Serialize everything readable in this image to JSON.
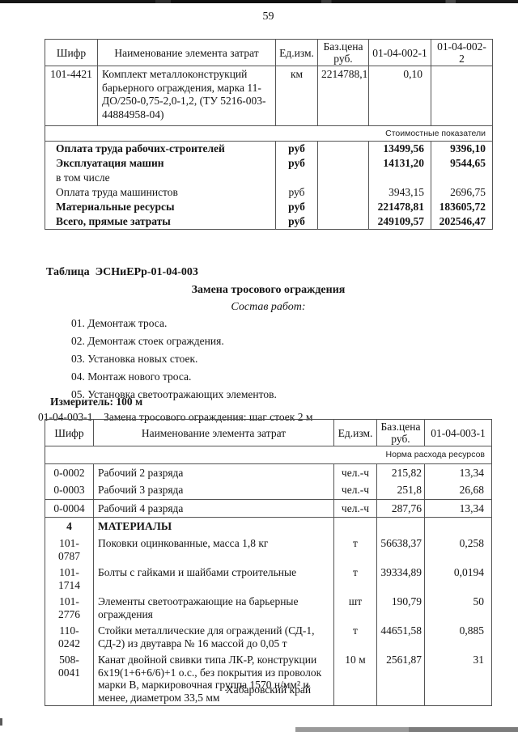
{
  "page": {
    "number": "59",
    "footer": "Хабаровский край"
  },
  "table1": {
    "headers": [
      "Шифр",
      "Наименование элемента затрат",
      "Ед.изм.",
      "Баз.цена руб.",
      "01-04-002-1",
      "01-04-002-2"
    ],
    "resource_rows": [
      {
        "code": "101-4421",
        "name": "Комплект металлоконструкций барьерного ограждения, марка 11-ДО/250-0,75-2,0-1,2, (ТУ 5216-003-44884958-04)",
        "unit": "км",
        "base_price": "2214788,1",
        "v1": "0,10",
        "v2": ""
      }
    ],
    "section_label": "Стоимостные показатели",
    "cost_rows": [
      {
        "name": "Оплата труда рабочих-строителей",
        "unit": "руб",
        "v1": "13499,56",
        "v2": "9396,10",
        "bold": true
      },
      {
        "name": "Эксплуатация машин",
        "unit": "руб",
        "v1": "14131,20",
        "v2": "9544,65",
        "bold": true
      },
      {
        "name": "в том числе",
        "unit": "",
        "v1": "",
        "v2": "",
        "bold": false
      },
      {
        "name": "Оплата труда машинистов",
        "unit": "руб",
        "v1": "3943,15",
        "v2": "2696,75",
        "bold": false
      },
      {
        "name": "Материальные ресурсы",
        "unit": "руб",
        "v1": "221478,81",
        "v2": "183605,72",
        "bold": true
      },
      {
        "name": "Всего, прямые затраты",
        "unit": "руб",
        "v1": "249109,57",
        "v2": "202546,47",
        "bold": true
      }
    ]
  },
  "section": {
    "table_label": "Таблица  ЭСНиЕРр-01-04-003",
    "title": "Замена тросового ограждения",
    "subtitle": "Состав работ:",
    "work_items": [
      "01. Демонтаж троса.",
      "02. Демонтаж стоек ограждения.",
      "03. Установка новых стоек.",
      "04. Монтаж нового троса.",
      "05. Установка светоотражающих элементов."
    ],
    "measure_label": "Измеритель: 100 м",
    "entry_code": "01-04-003-1",
    "entry_name": "Замена тросового ограждения: шаг стоек 2 м"
  },
  "table2": {
    "headers": [
      "Шифр",
      "Наименование элемента затрат",
      "Ед.изм.",
      "Баз.цена руб.",
      "01-04-003-1"
    ],
    "section_label": "Норма расхода ресурсов",
    "rows": [
      {
        "code": "0-0002",
        "name": "Рабочий 2 разряда",
        "unit": "чел.-ч",
        "base_price": "215,82",
        "value": "13,34",
        "bold": false,
        "lines": 1
      },
      {
        "code": "0-0003",
        "name": "Рабочий 3 разряда",
        "unit": "чел.-ч",
        "base_price": "251,8",
        "value": "26,68",
        "bold": false,
        "lines": 1
      },
      {
        "code": "0-0004",
        "name": "Рабочий 4 разряда",
        "unit": "чел.-ч",
        "base_price": "287,76",
        "value": "13,34",
        "bold": false,
        "lines": 1,
        "rule_below": true
      },
      {
        "code": "4",
        "name": "МАТЕРИАЛЫ",
        "unit": "",
        "base_price": "",
        "value": "",
        "bold": true,
        "lines": 1
      },
      {
        "code": "101-0787",
        "name": "Поковки оцинкованные, масса 1,8 кг",
        "unit": "т",
        "base_price": "56638,37",
        "value": "0,258",
        "bold": false,
        "lines": 1
      },
      {
        "code": "101-1714",
        "name": "Болты с гайками и шайбами строительные",
        "unit": "т",
        "base_price": "39334,89",
        "value": "0,0194",
        "bold": false,
        "lines": 1
      },
      {
        "code": "101-2776",
        "name": "Элементы светоотражающие на барьерные ограждения",
        "unit": "шт",
        "base_price": "190,79",
        "value": "50",
        "bold": false,
        "lines": 2
      },
      {
        "code": "110-0242",
        "name": "Стойки металлические для ограждений (СД-1, СД-2) из двутавра № 16 массой до 0,05 т",
        "unit": "т",
        "base_price": "44651,58",
        "value": "0,885",
        "bold": false,
        "lines": 2
      },
      {
        "code": "508-0041",
        "name": "Канат двойной свивки типа ЛК-Р, конструкции 6х19(1+6+6/6)+1 о.с., без покрытия из проволок марки В, маркировочная группа 1570 н/мм² и менее, диаметром 33,5 мм",
        "unit": "10 м",
        "base_price": "2561,87",
        "value": "31",
        "bold": false,
        "lines": 4
      }
    ]
  }
}
